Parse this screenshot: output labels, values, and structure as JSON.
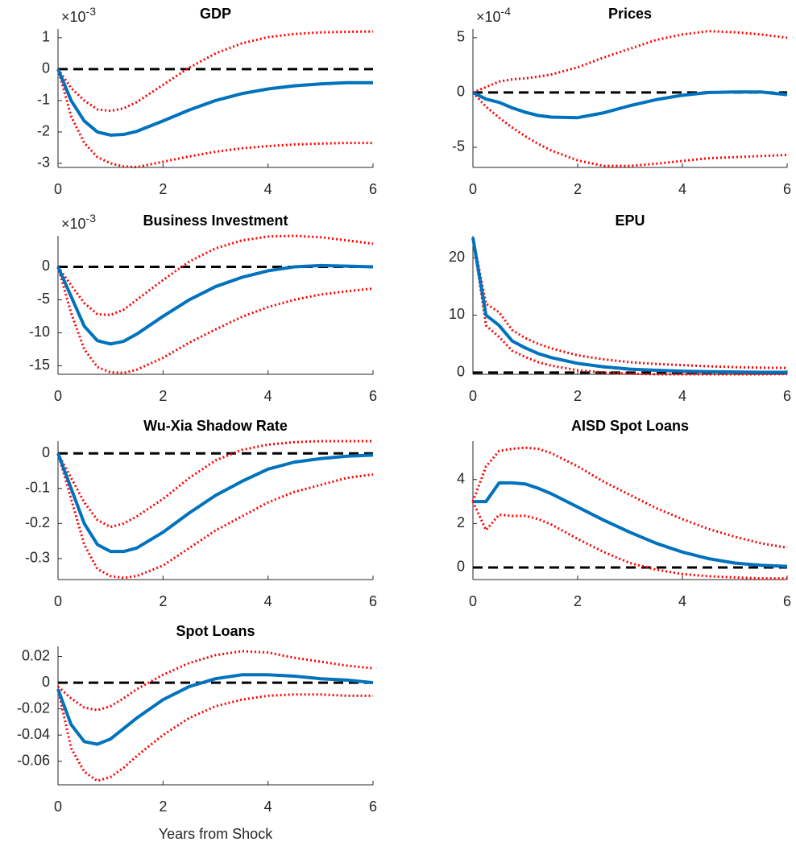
{
  "chart_data": [
    {
      "type": "line",
      "title": "GDP",
      "y_multiplier": {
        "base": "×10",
        "exponent": "-3"
      },
      "reference_line": 0,
      "x": [
        0,
        0.25,
        0.5,
        0.75,
        1,
        1.25,
        1.5,
        2,
        2.5,
        3,
        3.5,
        4,
        4.5,
        5,
        5.5,
        6
      ],
      "xlim": [
        0,
        6
      ],
      "xticks": [
        0,
        2,
        4,
        6
      ],
      "ylim": [
        -3.13,
        1.28
      ],
      "yticks": [
        -3,
        -2,
        -1,
        0,
        1
      ],
      "series": [
        {
          "color": "#0072bd",
          "style": "solid",
          "values": [
            0,
            -1.0,
            -1.65,
            -2.0,
            -2.1,
            -2.08,
            -1.98,
            -1.65,
            -1.3,
            -1.0,
            -0.78,
            -0.63,
            -0.53,
            -0.47,
            -0.43,
            -0.43
          ]
        },
        {
          "color": "#ff0000",
          "style": "dotted",
          "values": [
            0,
            -0.6,
            -1.0,
            -1.28,
            -1.33,
            -1.25,
            -1.05,
            -0.5,
            0.05,
            0.5,
            0.82,
            1.02,
            1.12,
            1.17,
            1.19,
            1.2
          ]
        },
        {
          "color": "#ff0000",
          "style": "dotted",
          "values": [
            0,
            -1.5,
            -2.35,
            -2.8,
            -3.0,
            -3.1,
            -3.12,
            -2.95,
            -2.78,
            -2.63,
            -2.52,
            -2.45,
            -2.4,
            -2.37,
            -2.35,
            -2.35
          ]
        }
      ]
    },
    {
      "type": "line",
      "title": "Prices",
      "y_multiplier": {
        "base": "×10",
        "exponent": "-4"
      },
      "reference_line": 0,
      "x": [
        0,
        0.25,
        0.5,
        0.75,
        1,
        1.25,
        1.5,
        2,
        2.5,
        3,
        3.5,
        4,
        4.5,
        5,
        5.5,
        6
      ],
      "xlim": [
        0,
        6
      ],
      "xticks": [
        0,
        2,
        4,
        6
      ],
      "ylim": [
        -6.84,
        5.8
      ],
      "yticks": [
        -5,
        0,
        5
      ],
      "series": [
        {
          "color": "#0072bd",
          "style": "solid",
          "values": [
            0,
            -0.6,
            -0.9,
            -1.4,
            -1.8,
            -2.1,
            -2.25,
            -2.3,
            -1.85,
            -1.2,
            -0.65,
            -0.25,
            0.0,
            0.05,
            0.05,
            -0.2
          ]
        },
        {
          "color": "#ff0000",
          "style": "dotted",
          "values": [
            0,
            0.5,
            1.0,
            1.2,
            1.3,
            1.45,
            1.65,
            2.3,
            3.2,
            4.0,
            4.8,
            5.3,
            5.6,
            5.5,
            5.3,
            5.0
          ]
        },
        {
          "color": "#ff0000",
          "style": "dotted",
          "values": [
            0,
            -1.3,
            -2.3,
            -3.2,
            -4.0,
            -4.7,
            -5.3,
            -6.2,
            -6.7,
            -6.7,
            -6.5,
            -6.25,
            -6.0,
            -5.9,
            -5.8,
            -5.7
          ]
        }
      ]
    },
    {
      "type": "line",
      "title": "Business Investment",
      "y_multiplier": {
        "base": "×10",
        "exponent": "-3"
      },
      "reference_line": 0,
      "x": [
        0,
        0.25,
        0.5,
        0.75,
        1,
        1.25,
        1.5,
        2,
        2.5,
        3,
        3.5,
        4,
        4.5,
        5,
        5.5,
        6
      ],
      "xlim": [
        0,
        6
      ],
      "xticks": [
        0,
        2,
        4,
        6
      ],
      "ylim": [
        -16.3,
        4.7
      ],
      "yticks": [
        -15,
        -10,
        -5,
        0
      ],
      "series": [
        {
          "color": "#0072bd",
          "style": "solid",
          "values": [
            0,
            -4.5,
            -9,
            -11.2,
            -11.7,
            -11.3,
            -10.2,
            -7.5,
            -5,
            -3,
            -1.6,
            -0.6,
            0,
            0.2,
            0.1,
            0
          ]
        },
        {
          "color": "#ff0000",
          "style": "dotted",
          "values": [
            0,
            -2.8,
            -5.5,
            -7.2,
            -7.3,
            -6.5,
            -5,
            -2,
            0.8,
            2.8,
            4.0,
            4.6,
            4.7,
            4.5,
            4.0,
            3.5
          ]
        },
        {
          "color": "#ff0000",
          "style": "dotted",
          "values": [
            0,
            -7,
            -12.5,
            -15.2,
            -16,
            -16.1,
            -15.6,
            -13.8,
            -11.5,
            -9.5,
            -7.6,
            -6.1,
            -5,
            -4.2,
            -3.7,
            -3.3
          ]
        }
      ]
    },
    {
      "type": "line",
      "title": "EPU",
      "reference_line": 0,
      "x": [
        0,
        0.25,
        0.5,
        0.75,
        1,
        1.25,
        1.5,
        2,
        2.5,
        3,
        3.5,
        4,
        4.5,
        5,
        5.5,
        6
      ],
      "xlim": [
        0,
        6
      ],
      "xticks": [
        0,
        2,
        4,
        6
      ],
      "ylim": [
        -0.3,
        23.8
      ],
      "yticks": [
        0,
        10,
        20
      ],
      "series": [
        {
          "color": "#0072bd",
          "style": "solid",
          "values": [
            23.5,
            10,
            8.2,
            5.5,
            4.3,
            3.3,
            2.6,
            1.6,
            1.0,
            0.6,
            0.4,
            0.25,
            0.15,
            0.1,
            0.05,
            0.05
          ]
        },
        {
          "color": "#ff0000",
          "style": "dotted",
          "values": [
            23.5,
            12,
            10.5,
            7.4,
            6.0,
            5.0,
            4.2,
            3.0,
            2.3,
            1.8,
            1.5,
            1.3,
            1.1,
            0.95,
            0.85,
            0.8
          ]
        },
        {
          "color": "#ff0000",
          "style": "dotted",
          "values": [
            23.5,
            8.2,
            6.2,
            3.8,
            2.7,
            1.8,
            1.2,
            0.4,
            0.0,
            -0.2,
            -0.3,
            -0.3,
            -0.3,
            -0.3,
            -0.3,
            -0.25
          ]
        }
      ]
    },
    {
      "type": "line",
      "title": "Wu-Xia Shadow Rate",
      "reference_line": 0,
      "x": [
        0,
        0.25,
        0.5,
        0.75,
        1,
        1.25,
        1.5,
        2,
        2.5,
        3,
        3.5,
        4,
        4.5,
        5,
        5.5,
        6
      ],
      "xlim": [
        0,
        6
      ],
      "xticks": [
        0,
        2,
        4,
        6
      ],
      "ylim": [
        -0.36,
        0.035
      ],
      "yticks": [
        -0.3,
        -0.2,
        -0.1,
        0
      ],
      "series": [
        {
          "color": "#0072bd",
          "style": "solid",
          "values": [
            0,
            -0.1,
            -0.2,
            -0.26,
            -0.28,
            -0.28,
            -0.27,
            -0.225,
            -0.17,
            -0.12,
            -0.08,
            -0.045,
            -0.025,
            -0.015,
            -0.008,
            -0.005
          ]
        },
        {
          "color": "#ff0000",
          "style": "dotted",
          "values": [
            0,
            -0.07,
            -0.14,
            -0.19,
            -0.21,
            -0.2,
            -0.18,
            -0.13,
            -0.07,
            -0.02,
            0.01,
            0.025,
            0.032,
            0.035,
            0.035,
            0.035
          ]
        },
        {
          "color": "#ff0000",
          "style": "dotted",
          "values": [
            0,
            -0.13,
            -0.26,
            -0.33,
            -0.35,
            -0.355,
            -0.35,
            -0.32,
            -0.27,
            -0.22,
            -0.18,
            -0.14,
            -0.11,
            -0.09,
            -0.07,
            -0.06
          ]
        }
      ]
    },
    {
      "type": "line",
      "title": "AISD Spot Loans",
      "reference_line": 0,
      "x": [
        0,
        0.25,
        0.5,
        0.75,
        1,
        1.25,
        1.5,
        2,
        2.5,
        3,
        3.5,
        4,
        4.5,
        5,
        5.5,
        6
      ],
      "xlim": [
        0,
        6
      ],
      "xticks": [
        0,
        2,
        4,
        6
      ],
      "ylim": [
        -0.55,
        5.75
      ],
      "yticks": [
        0,
        2,
        4
      ],
      "series": [
        {
          "color": "#0072bd",
          "style": "solid",
          "values": [
            3,
            3,
            3.85,
            3.85,
            3.8,
            3.6,
            3.35,
            2.75,
            2.15,
            1.6,
            1.1,
            0.7,
            0.4,
            0.2,
            0.1,
            0.05
          ]
        },
        {
          "color": "#ff0000",
          "style": "dotted",
          "values": [
            3,
            4.6,
            5.3,
            5.4,
            5.45,
            5.4,
            5.2,
            4.6,
            3.9,
            3.3,
            2.7,
            2.2,
            1.75,
            1.4,
            1.1,
            0.9
          ]
        },
        {
          "color": "#ff0000",
          "style": "dotted",
          "values": [
            3,
            1.7,
            2.4,
            2.35,
            2.35,
            2.2,
            1.95,
            1.3,
            0.7,
            0.2,
            -0.1,
            -0.3,
            -0.4,
            -0.45,
            -0.5,
            -0.5
          ]
        }
      ]
    },
    {
      "type": "line",
      "title": "Spot Loans",
      "reference_line": 0,
      "xlabel": "Years from Shock",
      "x": [
        0,
        0.25,
        0.5,
        0.75,
        1,
        1.25,
        1.5,
        2,
        2.5,
        3,
        3.5,
        4,
        4.5,
        5,
        5.5,
        6
      ],
      "xlim": [
        0,
        6
      ],
      "xticks": [
        0,
        2,
        4,
        6
      ],
      "ylim": [
        -0.078,
        0.0277
      ],
      "yticks": [
        -0.06,
        -0.04,
        -0.02,
        0,
        0.02
      ],
      "series": [
        {
          "color": "#0072bd",
          "style": "solid",
          "values": [
            -0.005,
            -0.032,
            -0.045,
            -0.047,
            -0.043,
            -0.035,
            -0.027,
            -0.013,
            -0.003,
            0.003,
            0.006,
            0.006,
            0.005,
            0.003,
            0.002,
            0.0
          ]
        },
        {
          "color": "#ff0000",
          "style": "dotted",
          "values": [
            -0.003,
            -0.012,
            -0.019,
            -0.021,
            -0.018,
            -0.012,
            -0.005,
            0.006,
            0.015,
            0.021,
            0.024,
            0.023,
            0.019,
            0.016,
            0.013,
            0.011
          ]
        },
        {
          "color": "#ff0000",
          "style": "dotted",
          "values": [
            -0.005,
            -0.05,
            -0.068,
            -0.075,
            -0.072,
            -0.065,
            -0.056,
            -0.04,
            -0.027,
            -0.018,
            -0.013,
            -0.01,
            -0.009,
            -0.009,
            -0.01,
            -0.01
          ]
        }
      ]
    }
  ]
}
